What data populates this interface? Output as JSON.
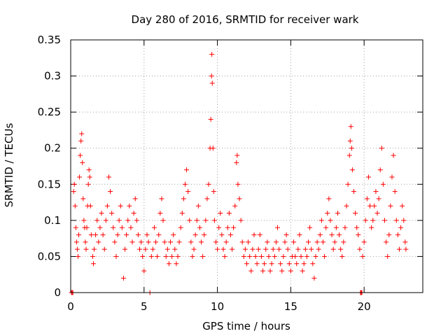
{
  "chart_data": {
    "type": "scatter",
    "title": "Day 280 of 2016, SRMTID for receiver wark",
    "xlabel": "GPS time / hours",
    "ylabel": "SRMTID / TECUs",
    "xlim": [
      0,
      24
    ],
    "ylim": [
      0,
      0.35
    ],
    "xticks": [
      0,
      5,
      10,
      15,
      20
    ],
    "xtick_labels": [
      "0",
      "5",
      "10",
      "15",
      "20"
    ],
    "yticks": [
      0,
      0.05,
      0.1,
      0.15,
      0.2,
      0.25,
      0.3,
      0.35
    ],
    "ytick_labels": [
      "0",
      "0.05",
      "0.1",
      "0.15",
      "0.2",
      "0.25",
      "0.3",
      "0.35"
    ],
    "grid": true,
    "marker": "+",
    "color": "#ff0000",
    "series": [
      {
        "name": "SRMTID",
        "points": [
          [
            0.05,
            0.0
          ],
          [
            0.1,
            0.0
          ],
          [
            0.15,
            0.0
          ],
          [
            0.2,
            0.14
          ],
          [
            0.25,
            0.15
          ],
          [
            0.3,
            0.12
          ],
          [
            0.35,
            0.09
          ],
          [
            0.4,
            0.07
          ],
          [
            0.45,
            0.06
          ],
          [
            0.5,
            0.05
          ],
          [
            0.55,
            0.08
          ],
          [
            0.6,
            0.16
          ],
          [
            0.65,
            0.19
          ],
          [
            0.7,
            0.21
          ],
          [
            0.75,
            0.22
          ],
          [
            0.8,
            0.18
          ],
          [
            0.85,
            0.13
          ],
          [
            0.9,
            0.1
          ],
          [
            0.95,
            0.09
          ],
          [
            1.0,
            0.07
          ],
          [
            1.05,
            0.06
          ],
          [
            1.1,
            0.09
          ],
          [
            1.15,
            0.12
          ],
          [
            1.2,
            0.15
          ],
          [
            1.25,
            0.17
          ],
          [
            1.3,
            0.16
          ],
          [
            1.35,
            0.12
          ],
          [
            1.4,
            0.08
          ],
          [
            1.5,
            0.05
          ],
          [
            1.55,
            0.04
          ],
          [
            1.6,
            0.06
          ],
          [
            1.7,
            0.08
          ],
          [
            1.8,
            0.1
          ],
          [
            1.9,
            0.07
          ],
          [
            2.0,
            0.09
          ],
          [
            2.1,
            0.11
          ],
          [
            2.2,
            0.08
          ],
          [
            2.3,
            0.06
          ],
          [
            2.4,
            0.1
          ],
          [
            2.5,
            0.12
          ],
          [
            2.6,
            0.16
          ],
          [
            2.7,
            0.14
          ],
          [
            2.8,
            0.11
          ],
          [
            2.9,
            0.09
          ],
          [
            3.0,
            0.07
          ],
          [
            3.1,
            0.05
          ],
          [
            3.2,
            0.08
          ],
          [
            3.3,
            0.1
          ],
          [
            3.4,
            0.12
          ],
          [
            3.5,
            0.09
          ],
          [
            3.6,
            0.02
          ],
          [
            3.7,
            0.06
          ],
          [
            3.8,
            0.08
          ],
          [
            3.9,
            0.1
          ],
          [
            4.0,
            0.12
          ],
          [
            4.1,
            0.09
          ],
          [
            4.2,
            0.07
          ],
          [
            4.3,
            0.11
          ],
          [
            4.4,
            0.13
          ],
          [
            4.5,
            0.1
          ],
          [
            4.6,
            0.08
          ],
          [
            4.7,
            0.06
          ],
          [
            4.8,
            0.07
          ],
          [
            4.9,
            0.05
          ],
          [
            5.0,
            0.03
          ],
          [
            5.1,
            0.06
          ],
          [
            5.2,
            0.08
          ],
          [
            5.3,
            0.07
          ],
          [
            5.4,
            0.0
          ],
          [
            5.5,
            0.05
          ],
          [
            5.6,
            0.06
          ],
          [
            5.7,
            0.09
          ],
          [
            5.8,
            0.07
          ],
          [
            5.9,
            0.05
          ],
          [
            6.0,
            0.08
          ],
          [
            6.1,
            0.11
          ],
          [
            6.2,
            0.13
          ],
          [
            6.3,
            0.1
          ],
          [
            6.4,
            0.07
          ],
          [
            6.5,
            0.05
          ],
          [
            6.6,
            0.06
          ],
          [
            6.7,
            0.04
          ],
          [
            6.8,
            0.07
          ],
          [
            6.9,
            0.05
          ],
          [
            7.0,
            0.08
          ],
          [
            7.1,
            0.06
          ],
          [
            7.2,
            0.04
          ],
          [
            7.3,
            0.05
          ],
          [
            7.4,
            0.07
          ],
          [
            7.5,
            0.09
          ],
          [
            7.6,
            0.11
          ],
          [
            7.7,
            0.13
          ],
          [
            7.8,
            0.15
          ],
          [
            7.9,
            0.17
          ],
          [
            8.0,
            0.14
          ],
          [
            8.1,
            0.1
          ],
          [
            8.2,
            0.07
          ],
          [
            8.3,
            0.05
          ],
          [
            8.4,
            0.06
          ],
          [
            8.5,
            0.08
          ],
          [
            8.6,
            0.1
          ],
          [
            8.7,
            0.12
          ],
          [
            8.8,
            0.09
          ],
          [
            8.9,
            0.07
          ],
          [
            9.0,
            0.05
          ],
          [
            9.1,
            0.08
          ],
          [
            9.2,
            0.1
          ],
          [
            9.3,
            0.13
          ],
          [
            9.4,
            0.15
          ],
          [
            9.5,
            0.2
          ],
          [
            9.55,
            0.24
          ],
          [
            9.6,
            0.3
          ],
          [
            9.62,
            0.33
          ],
          [
            9.65,
            0.29
          ],
          [
            9.7,
            0.2
          ],
          [
            9.75,
            0.14
          ],
          [
            9.8,
            0.1
          ],
          [
            9.9,
            0.07
          ],
          [
            10.0,
            0.06
          ],
          [
            10.1,
            0.09
          ],
          [
            10.2,
            0.11
          ],
          [
            10.3,
            0.08
          ],
          [
            10.4,
            0.06
          ],
          [
            10.5,
            0.05
          ],
          [
            10.6,
            0.07
          ],
          [
            10.7,
            0.09
          ],
          [
            10.8,
            0.11
          ],
          [
            10.9,
            0.08
          ],
          [
            11.0,
            0.06
          ],
          [
            11.1,
            0.09
          ],
          [
            11.2,
            0.12
          ],
          [
            11.3,
            0.18
          ],
          [
            11.35,
            0.19
          ],
          [
            11.4,
            0.15
          ],
          [
            11.5,
            0.13
          ],
          [
            11.6,
            0.1
          ],
          [
            11.7,
            0.07
          ],
          [
            11.8,
            0.05
          ],
          [
            11.9,
            0.06
          ],
          [
            12.0,
            0.04
          ],
          [
            12.1,
            0.07
          ],
          [
            12.2,
            0.05
          ],
          [
            12.3,
            0.03
          ],
          [
            12.4,
            0.06
          ],
          [
            12.5,
            0.08
          ],
          [
            12.6,
            0.05
          ],
          [
            12.7,
            0.04
          ],
          [
            12.8,
            0.06
          ],
          [
            12.9,
            0.08
          ],
          [
            13.0,
            0.05
          ],
          [
            13.1,
            0.03
          ],
          [
            13.2,
            0.04
          ],
          [
            13.3,
            0.06
          ],
          [
            13.4,
            0.07
          ],
          [
            13.5,
            0.05
          ],
          [
            13.6,
            0.03
          ],
          [
            13.7,
            0.04
          ],
          [
            13.8,
            0.06
          ],
          [
            13.9,
            0.05
          ],
          [
            14.0,
            0.07
          ],
          [
            14.1,
            0.09
          ],
          [
            14.2,
            0.06
          ],
          [
            14.3,
            0.04
          ],
          [
            14.4,
            0.03
          ],
          [
            14.5,
            0.05
          ],
          [
            14.6,
            0.07
          ],
          [
            14.7,
            0.08
          ],
          [
            14.8,
            0.06
          ],
          [
            14.9,
            0.04
          ],
          [
            15.0,
            0.03
          ],
          [
            15.1,
            0.05
          ],
          [
            15.2,
            0.07
          ],
          [
            15.3,
            0.05
          ],
          [
            15.4,
            0.04
          ],
          [
            15.5,
            0.06
          ],
          [
            15.6,
            0.08
          ],
          [
            15.7,
            0.05
          ],
          [
            15.8,
            0.03
          ],
          [
            15.9,
            0.04
          ],
          [
            16.0,
            0.06
          ],
          [
            16.1,
            0.05
          ],
          [
            16.2,
            0.07
          ],
          [
            16.3,
            0.09
          ],
          [
            16.4,
            0.06
          ],
          [
            16.5,
            0.04
          ],
          [
            16.6,
            0.02
          ],
          [
            16.7,
            0.05
          ],
          [
            16.8,
            0.07
          ],
          [
            16.9,
            0.06
          ],
          [
            17.0,
            0.08
          ],
          [
            17.1,
            0.1
          ],
          [
            17.2,
            0.07
          ],
          [
            17.3,
            0.05
          ],
          [
            17.4,
            0.09
          ],
          [
            17.5,
            0.11
          ],
          [
            17.6,
            0.13
          ],
          [
            17.7,
            0.1
          ],
          [
            17.8,
            0.08
          ],
          [
            17.9,
            0.06
          ],
          [
            18.0,
            0.07
          ],
          [
            18.1,
            0.09
          ],
          [
            18.2,
            0.11
          ],
          [
            18.3,
            0.08
          ],
          [
            18.4,
            0.06
          ],
          [
            18.5,
            0.05
          ],
          [
            18.6,
            0.07
          ],
          [
            18.7,
            0.09
          ],
          [
            18.8,
            0.12
          ],
          [
            18.9,
            0.15
          ],
          [
            19.0,
            0.19
          ],
          [
            19.05,
            0.21
          ],
          [
            19.1,
            0.23
          ],
          [
            19.15,
            0.2
          ],
          [
            19.2,
            0.17
          ],
          [
            19.3,
            0.14
          ],
          [
            19.4,
            0.11
          ],
          [
            19.5,
            0.09
          ],
          [
            19.6,
            0.08
          ],
          [
            19.7,
            0.06
          ],
          [
            19.75,
            0.0
          ],
          [
            19.8,
            0.0
          ],
          [
            19.85,
            0.0
          ],
          [
            19.9,
            0.05
          ],
          [
            20.0,
            0.07
          ],
          [
            20.1,
            0.1
          ],
          [
            20.2,
            0.13
          ],
          [
            20.3,
            0.16
          ],
          [
            20.4,
            0.12
          ],
          [
            20.5,
            0.09
          ],
          [
            20.6,
            0.1
          ],
          [
            20.7,
            0.12
          ],
          [
            20.8,
            0.14
          ],
          [
            20.9,
            0.11
          ],
          [
            21.0,
            0.13
          ],
          [
            21.1,
            0.17
          ],
          [
            21.2,
            0.2
          ],
          [
            21.3,
            0.15
          ],
          [
            21.4,
            0.1
          ],
          [
            21.5,
            0.07
          ],
          [
            21.6,
            0.05
          ],
          [
            21.7,
            0.08
          ],
          [
            21.8,
            0.12
          ],
          [
            21.9,
            0.16
          ],
          [
            22.0,
            0.19
          ],
          [
            22.1,
            0.14
          ],
          [
            22.2,
            0.1
          ],
          [
            22.3,
            0.08
          ],
          [
            22.4,
            0.06
          ],
          [
            22.5,
            0.09
          ],
          [
            22.6,
            0.12
          ],
          [
            22.7,
            0.1
          ],
          [
            22.8,
            0.07
          ],
          [
            22.85,
            0.06
          ]
        ]
      }
    ]
  }
}
